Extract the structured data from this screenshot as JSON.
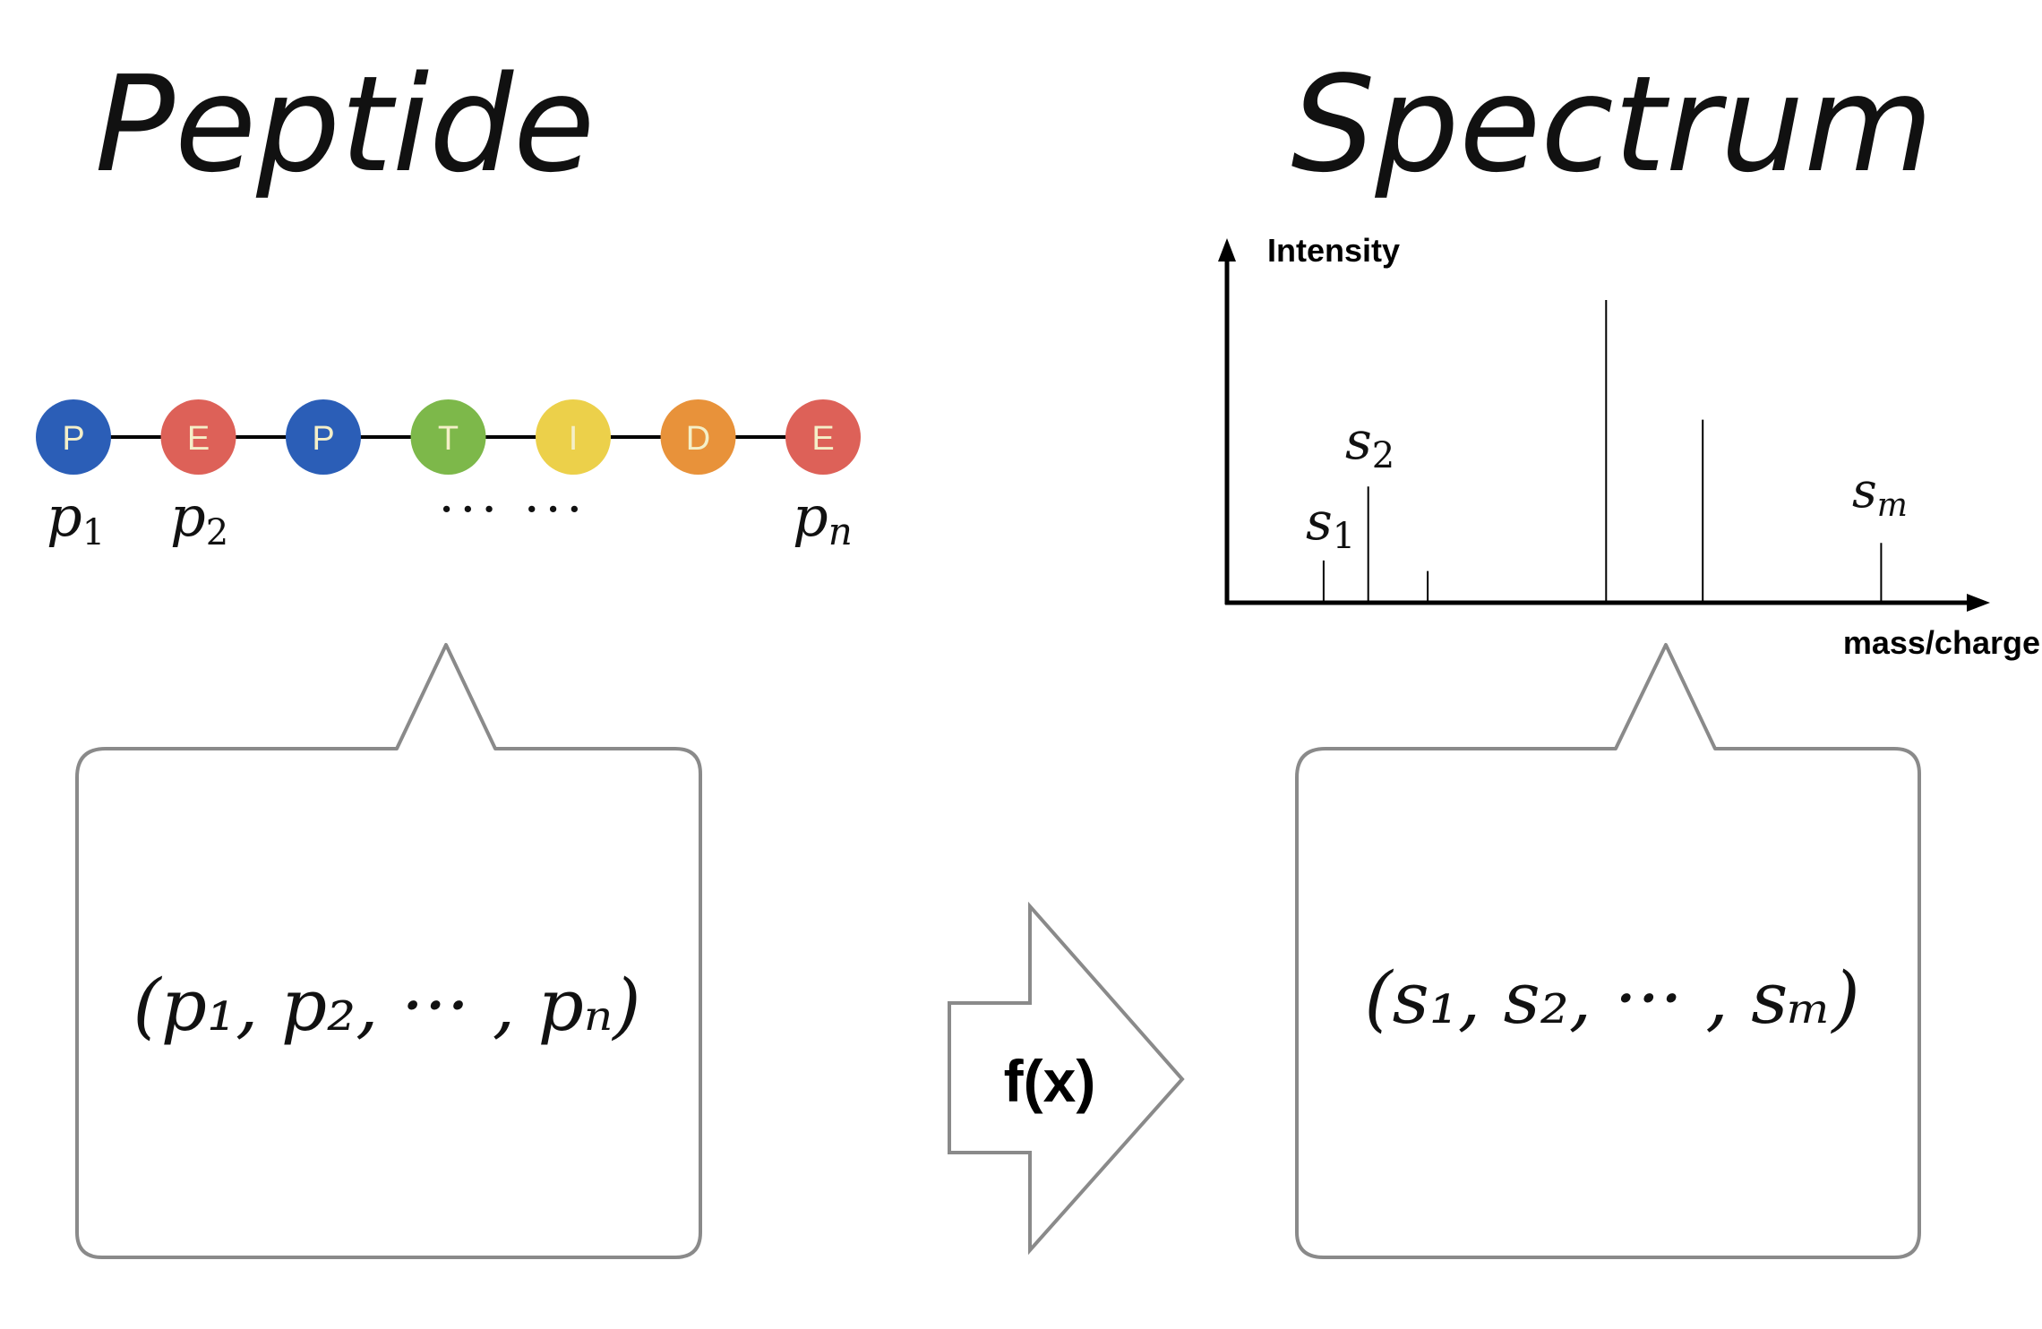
{
  "left_title": "Peptide",
  "right_title": "Spectrum",
  "peptide": {
    "edge_color": "#000000",
    "residues": [
      {
        "letter": "P",
        "color": "#2b5eb7"
      },
      {
        "letter": "E",
        "color": "#dd6158"
      },
      {
        "letter": "P",
        "color": "#2b5eb7"
      },
      {
        "letter": "T",
        "color": "#7db84a"
      },
      {
        "letter": "I",
        "color": "#ecd04a"
      },
      {
        "letter": "D",
        "color": "#e8923a"
      },
      {
        "letter": "E",
        "color": "#dd6158"
      }
    ],
    "labels": [
      {
        "base": "p",
        "sub": "1"
      },
      {
        "base": "p",
        "sub": "2"
      },
      {
        "base": "p",
        "sub": "n"
      }
    ],
    "ellipsis": "··· ···"
  },
  "tuples": {
    "left": "(p₁, p₂, ··· , pₙ)",
    "right": "(s₁, s₂, ··· , sₘ)"
  },
  "arrow_label": "f(x)",
  "spectrum": {
    "ylabel": "Intensity",
    "xlabel": "mass/charge",
    "peak_labels": [
      {
        "base": "s",
        "sub": "1"
      },
      {
        "base": "s",
        "sub": "2"
      },
      {
        "base": "s",
        "sub": "m"
      }
    ]
  },
  "chart_data": {
    "type": "bar",
    "title": "",
    "xlabel": "mass/charge",
    "ylabel": "Intensity",
    "x": [
      0.13,
      0.19,
      0.27,
      0.51,
      0.64,
      0.88
    ],
    "values": [
      0.12,
      0.33,
      0.09,
      0.86,
      0.52,
      0.17
    ],
    "xlim": [
      0,
      1
    ],
    "ylim": [
      0,
      1
    ]
  },
  "colors": {
    "box_stroke": "#8a8a8a",
    "line": "#000000"
  }
}
